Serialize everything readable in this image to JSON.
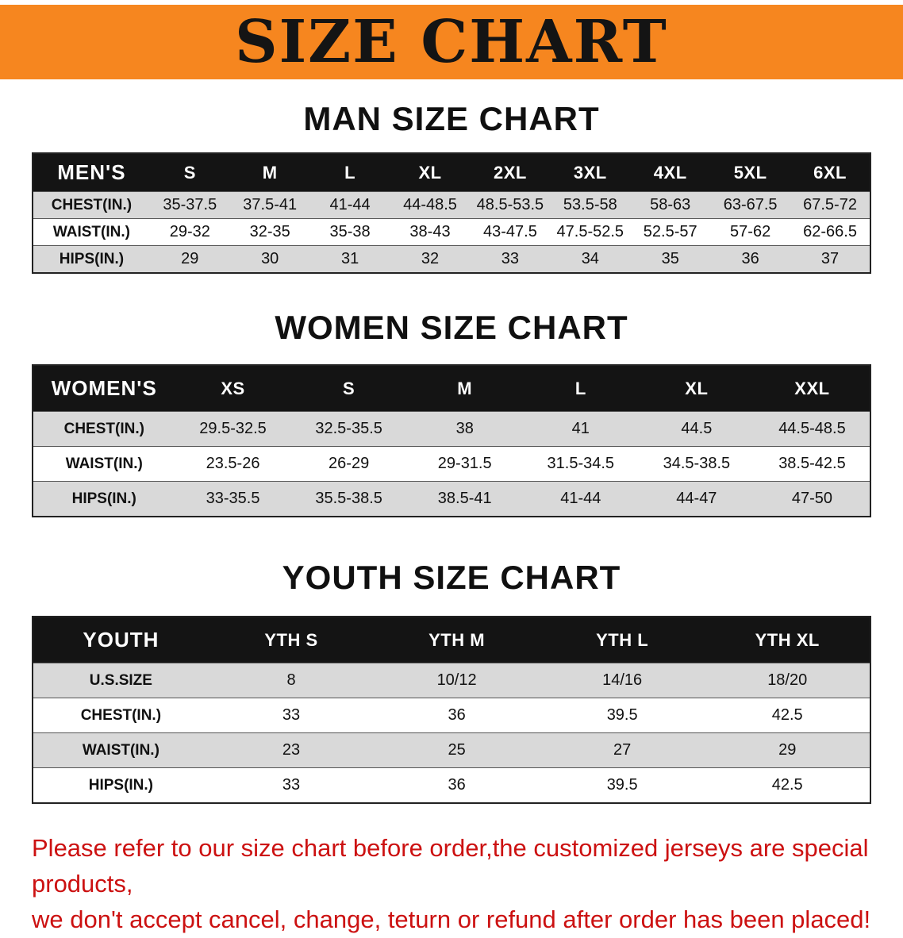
{
  "banner": {
    "title": "SIZE CHART"
  },
  "colors": {
    "banner_bg": "#f6861f",
    "table_header_bg": "#141414",
    "row_stripe": "#d9d9d9",
    "notice_text": "#cc1111"
  },
  "men": {
    "heading": "MAN SIZE CHART",
    "header": [
      "MEN'S",
      "S",
      "M",
      "L",
      "XL",
      "2XL",
      "3XL",
      "4XL",
      "5XL",
      "6XL"
    ],
    "rows": [
      [
        "CHEST(IN.)",
        "35-37.5",
        "37.5-41",
        "41-44",
        "44-48.5",
        "48.5-53.5",
        "53.5-58",
        "58-63",
        "63-67.5",
        "67.5-72"
      ],
      [
        "WAIST(IN.)",
        "29-32",
        "32-35",
        "35-38",
        "38-43",
        "43-47.5",
        "47.5-52.5",
        "52.5-57",
        "57-62",
        "62-66.5"
      ],
      [
        "HIPS(IN.)",
        "29",
        "30",
        "31",
        "32",
        "33",
        "34",
        "35",
        "36",
        "37"
      ]
    ]
  },
  "women": {
    "heading": "WOMEN SIZE CHART",
    "header": [
      "WOMEN'S",
      "XS",
      "S",
      "M",
      "L",
      "XL",
      "XXL"
    ],
    "rows": [
      [
        "CHEST(IN.)",
        "29.5-32.5",
        "32.5-35.5",
        "38",
        "41",
        "44.5",
        "44.5-48.5"
      ],
      [
        "WAIST(IN.)",
        "23.5-26",
        "26-29",
        "29-31.5",
        "31.5-34.5",
        "34.5-38.5",
        "38.5-42.5"
      ],
      [
        "HIPS(IN.)",
        "33-35.5",
        "35.5-38.5",
        "38.5-41",
        "41-44",
        "44-47",
        "47-50"
      ]
    ]
  },
  "youth": {
    "heading": "YOUTH SIZE CHART",
    "header": [
      "YOUTH",
      "YTH S",
      "YTH M",
      "YTH L",
      "YTH XL"
    ],
    "rows": [
      [
        "U.S.SIZE",
        "8",
        "10/12",
        "14/16",
        "18/20"
      ],
      [
        "CHEST(IN.)",
        "33",
        "36",
        "39.5",
        "42.5"
      ],
      [
        "WAIST(IN.)",
        "23",
        "25",
        "27",
        "29"
      ],
      [
        "HIPS(IN.)",
        "33",
        "36",
        "39.5",
        "42.5"
      ]
    ]
  },
  "footer": {
    "line1": "Please refer to our size chart before order,the customized jerseys are special products,",
    "line2": "we don't accept cancel, change, teturn or refund after order has been placed!"
  }
}
